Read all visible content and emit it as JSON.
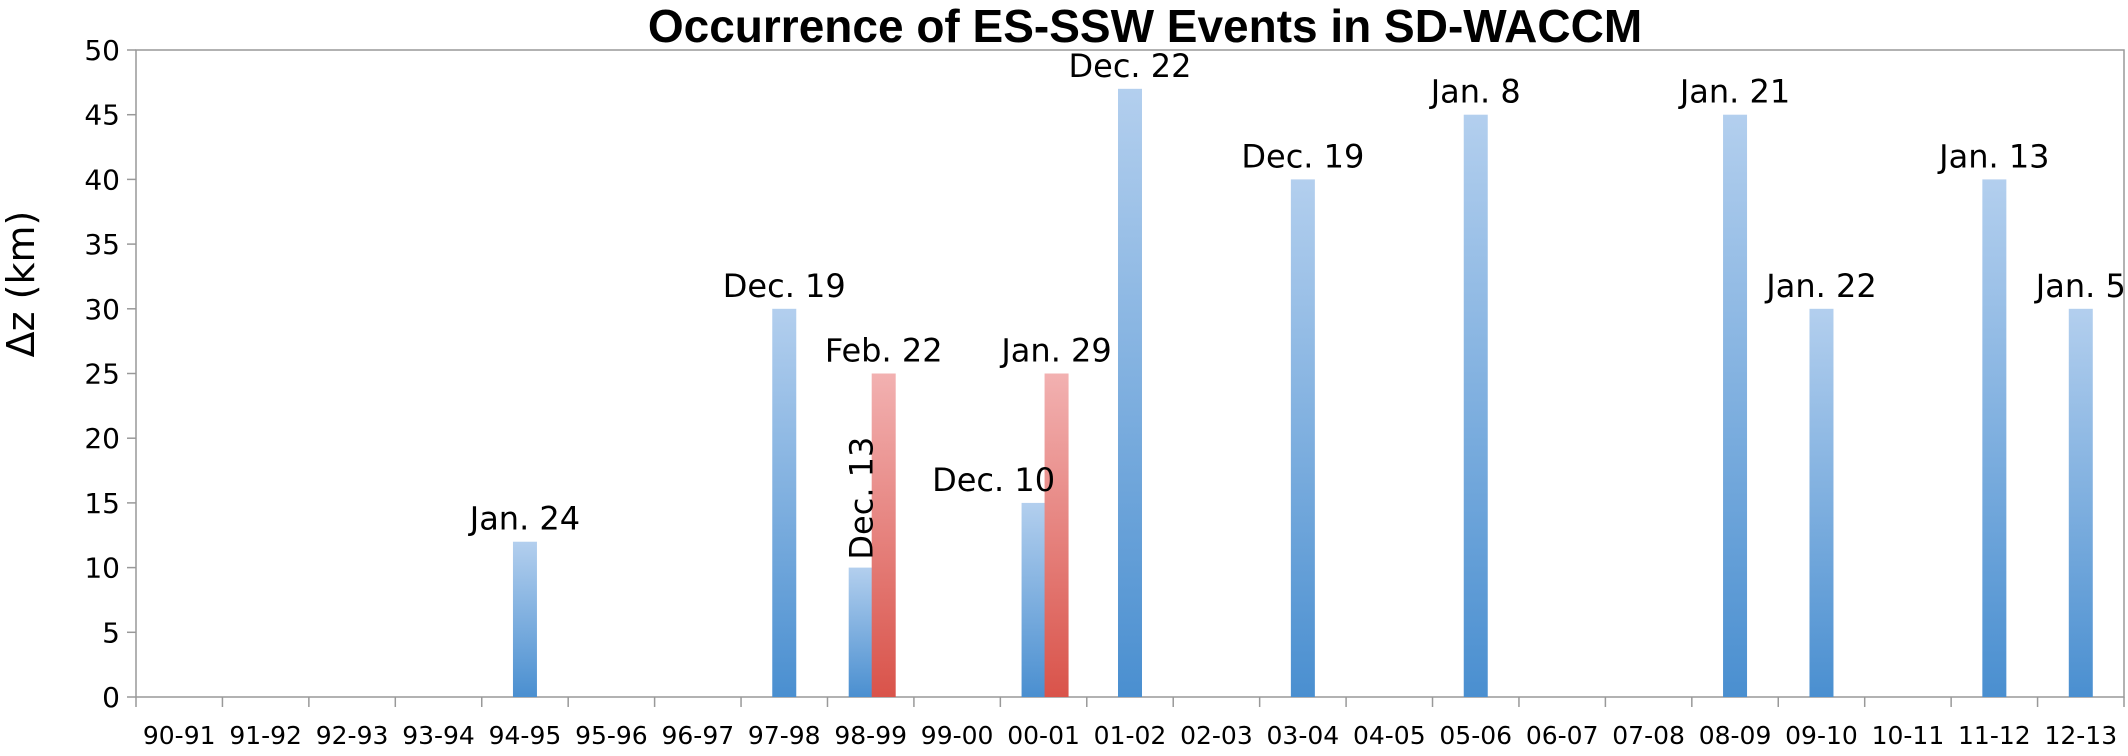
{
  "chart_data": {
    "type": "bar",
    "title": "Occurrence of ES-SSW Events in SD-WACCM",
    "xlabel": "",
    "ylabel": "Δz (km)",
    "ylim": [
      0,
      50
    ],
    "yticks": [
      0,
      5,
      10,
      15,
      20,
      25,
      30,
      35,
      40,
      45,
      50
    ],
    "grid": false,
    "categories": [
      "90-91",
      "91-92",
      "92-93",
      "93-94",
      "94-95",
      "95-96",
      "96-97",
      "97-98",
      "98-99",
      "99-00",
      "00-01",
      "01-02",
      "02-03",
      "03-04",
      "04-05",
      "05-06",
      "06-07",
      "07-08",
      "08-09",
      "09-10",
      "10-11",
      "11-12",
      "12-13"
    ],
    "colors": {
      "blue_top": "#b3cfee",
      "blue_bottom": "#4a8fd0",
      "red_top": "#f2b1b1",
      "red_bottom": "#d9534a"
    },
    "bars": [
      {
        "category": "94-95",
        "value": 12,
        "label": "Jan. 24",
        "color": "blue",
        "slot": "single"
      },
      {
        "category": "97-98",
        "value": 30,
        "label": "Dec. 19",
        "color": "blue",
        "slot": "single"
      },
      {
        "category": "98-99",
        "value": 10,
        "label": "Dec. 13",
        "color": "blue",
        "slot": "left",
        "label_rotated": true
      },
      {
        "category": "98-99",
        "value": 25,
        "label": "Feb. 22",
        "color": "red",
        "slot": "right"
      },
      {
        "category": "00-01",
        "value": 15,
        "label": "Dec. 10",
        "color": "blue",
        "slot": "left"
      },
      {
        "category": "00-01",
        "value": 25,
        "label": "Jan. 29",
        "color": "red",
        "slot": "right"
      },
      {
        "category": "01-02",
        "value": 47,
        "label": "Dec. 22",
        "color": "blue",
        "slot": "single"
      },
      {
        "category": "03-04",
        "value": 40,
        "label": "Dec. 19",
        "color": "blue",
        "slot": "single"
      },
      {
        "category": "05-06",
        "value": 45,
        "label": "Jan. 8",
        "color": "blue",
        "slot": "single"
      },
      {
        "category": "08-09",
        "value": 45,
        "label": "Jan. 21",
        "color": "blue",
        "slot": "single"
      },
      {
        "category": "09-10",
        "value": 30,
        "label": "Jan. 22",
        "color": "blue",
        "slot": "single"
      },
      {
        "category": "11-12",
        "value": 40,
        "label": "Jan. 13",
        "color": "blue",
        "slot": "single"
      },
      {
        "category": "12-13",
        "value": 30,
        "label": "Jan. 5",
        "color": "blue",
        "slot": "single"
      }
    ]
  }
}
